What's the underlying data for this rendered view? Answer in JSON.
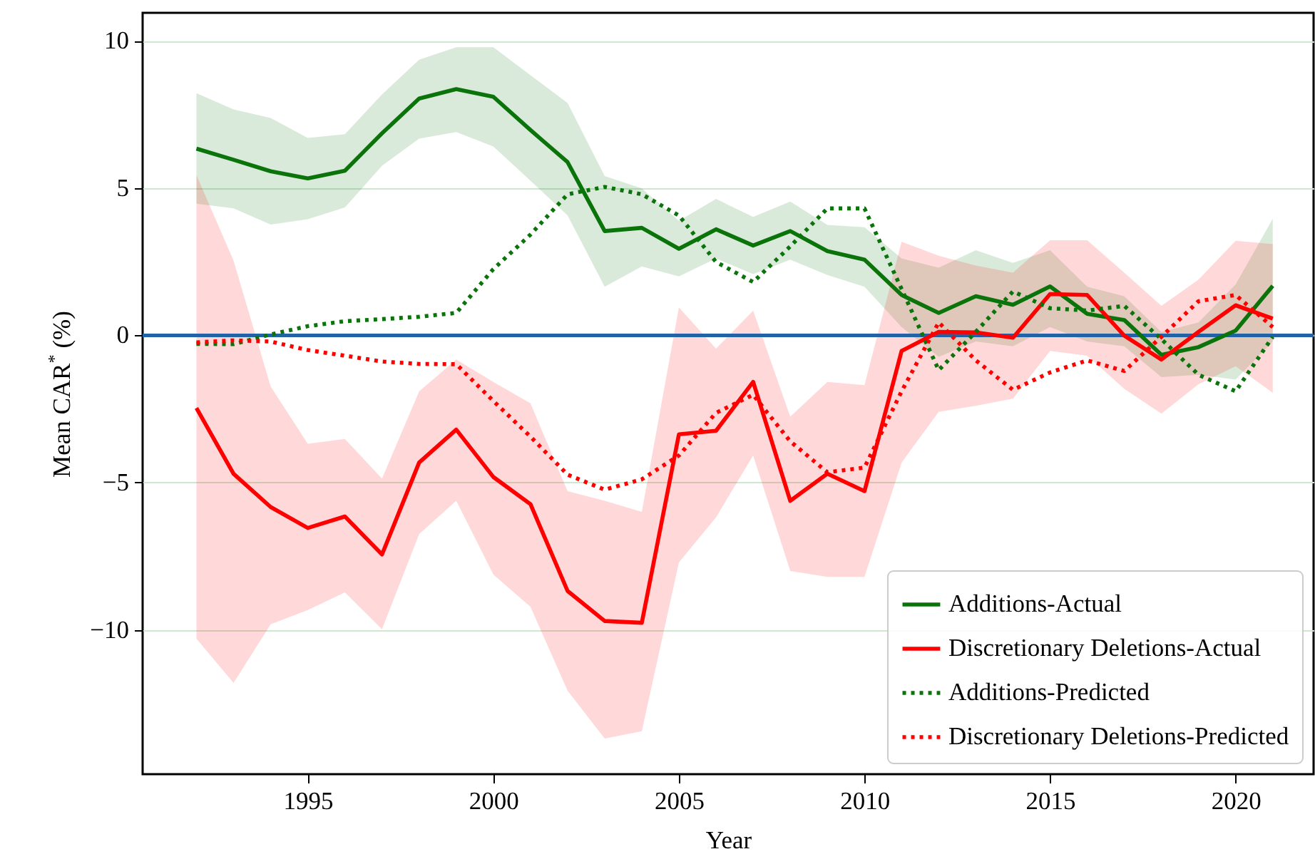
{
  "chart_data": {
    "type": "line",
    "xlabel": "Year",
    "ylabel": "Mean CAR$^{*}$ (%)",
    "x": [
      1992,
      1993,
      1994,
      1995,
      1996,
      1997,
      1998,
      1999,
      2000,
      2001,
      2002,
      2003,
      2004,
      2005,
      2006,
      2007,
      2008,
      2009,
      2010,
      2011,
      2012,
      2013,
      2014,
      2015,
      2016,
      2017,
      2018,
      2019,
      2020,
      2021
    ],
    "xlim": [
      1990.55,
      2022.1
    ],
    "xticks": [
      1995,
      2000,
      2005,
      2010,
      2015,
      2020
    ],
    "ylim": [
      -14.9,
      10.95
    ],
    "yticks": [
      -10,
      -5,
      0,
      5,
      10
    ],
    "grid": "y",
    "legend": "bottom right",
    "ref_lines": [
      {
        "axis": "y",
        "value": 0,
        "color": "#2163a6"
      }
    ],
    "series": [
      {
        "name": "Additions-Actual",
        "color": "#0a730a",
        "line_style": "solid",
        "values": [
          6.34,
          5.96,
          5.57,
          5.33,
          5.59,
          6.86,
          8.04,
          8.36,
          8.1,
          6.97,
          5.88,
          3.54,
          3.65,
          2.94,
          3.6,
          3.05,
          3.54,
          2.86,
          2.57,
          1.37,
          0.76,
          1.33,
          1.04,
          1.66,
          0.73,
          0.52,
          -0.66,
          -0.4,
          0.16,
          1.68
        ],
        "upper": [
          8.22,
          7.67,
          7.38,
          6.7,
          6.83,
          8.18,
          9.36,
          9.78,
          9.78,
          8.83,
          7.89,
          5.41,
          4.99,
          3.89,
          4.63,
          4.02,
          4.54,
          3.75,
          3.67,
          2.61,
          2.3,
          2.89,
          2.46,
          2.89,
          1.65,
          1.33,
          0.11,
          0.44,
          1.73,
          3.96
        ],
        "lower": [
          4.47,
          4.31,
          3.76,
          3.94,
          4.34,
          5.76,
          6.68,
          6.9,
          6.41,
          5.25,
          4.07,
          1.65,
          2.34,
          2.0,
          2.61,
          2.08,
          2.57,
          2.05,
          1.65,
          0.28,
          -0.73,
          -0.21,
          -0.37,
          0.28,
          -0.21,
          -0.37,
          -1.42,
          -1.34,
          -1.5,
          -0.21
        ]
      },
      {
        "name": "Discretionary Deletions-Actual",
        "color": "#ff0000",
        "line_style": "solid",
        "values": [
          -2.47,
          -4.7,
          -5.83,
          -6.54,
          -6.15,
          -7.44,
          -4.32,
          -3.2,
          -4.81,
          -5.73,
          -8.68,
          -9.7,
          -9.76,
          -3.36,
          -3.24,
          -1.58,
          -5.62,
          -4.7,
          -5.29,
          -0.53,
          0.12,
          0.1,
          -0.08,
          1.4,
          1.37,
          -0.01,
          -0.82,
          0.12,
          1.02,
          0.57
        ],
        "upper": [
          5.44,
          2.54,
          -1.74,
          -3.68,
          -3.52,
          -4.86,
          -1.9,
          -0.82,
          -1.58,
          -2.31,
          -5.29,
          -5.62,
          -5.99,
          0.95,
          -0.45,
          0.84,
          -2.76,
          -1.58,
          -1.69,
          3.18,
          2.7,
          2.37,
          2.13,
          3.23,
          3.23,
          2.13,
          1.0,
          1.89,
          3.21,
          3.1
        ],
        "lower": [
          -10.3,
          -11.8,
          -9.81,
          -9.33,
          -8.73,
          -9.98,
          -6.75,
          -5.62,
          -8.12,
          -9.22,
          -12.07,
          -13.69,
          -13.44,
          -7.71,
          -6.18,
          -4.08,
          -8.0,
          -8.2,
          -8.2,
          -4.32,
          -2.6,
          -2.39,
          -2.15,
          -0.53,
          -0.69,
          -1.82,
          -2.66,
          -1.66,
          -1.05,
          -1.95
        ]
      },
      {
        "name": "Additions-Predicted",
        "color": "#0a730a",
        "line_style": "dotted",
        "values": [
          -0.29,
          -0.3,
          0.03,
          0.31,
          0.48,
          0.55,
          0.63,
          0.76,
          2.25,
          3.42,
          4.79,
          5.04,
          4.79,
          4.07,
          2.49,
          1.81,
          3.02,
          4.31,
          4.31,
          1.57,
          -1.18,
          0.12,
          1.49,
          0.92,
          0.84,
          1.0,
          -0.13,
          -1.34,
          -1.9,
          -0.05
        ]
      },
      {
        "name": "Discretionary Deletions-Predicted",
        "color": "#ff0000",
        "line_style": "dotted",
        "values": [
          -0.24,
          -0.17,
          -0.21,
          -0.5,
          -0.69,
          -0.89,
          -0.97,
          -0.98,
          -2.23,
          -3.44,
          -4.73,
          -5.24,
          -4.89,
          -4.08,
          -2.63,
          -2.02,
          -3.6,
          -4.65,
          -4.49,
          -1.9,
          0.44,
          -0.85,
          -1.85,
          -1.26,
          -0.85,
          -1.21,
          -0.05,
          1.16,
          1.37,
          0.28
        ]
      }
    ]
  }
}
